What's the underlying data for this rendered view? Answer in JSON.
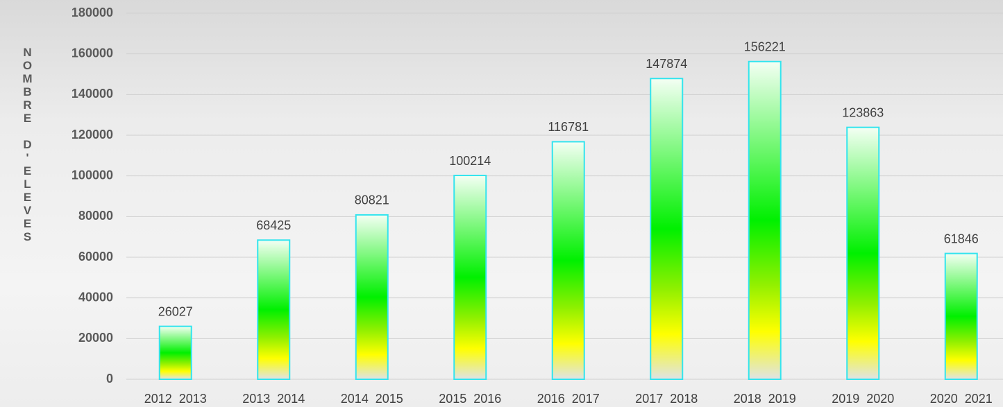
{
  "chart_data": {
    "type": "bar",
    "y_label": "NOMBRE D'ELEVES",
    "categories": [
      "2012 2013",
      "2013 2014",
      "2014 2015",
      "2015 2016",
      "2016 2017",
      "2017 2018",
      "2018 2019",
      "2019 2020",
      "2020 2021"
    ],
    "values": [
      26027,
      68425,
      80821,
      100214,
      116781,
      147874,
      156221,
      123863,
      61846
    ],
    "color": "#33e4ee",
    "ylim": [
      0,
      180000
    ],
    "yticks": [
      0,
      20000,
      40000,
      60000,
      80000,
      100000,
      120000,
      140000,
      160000,
      180000
    ],
    "grid": true
  }
}
